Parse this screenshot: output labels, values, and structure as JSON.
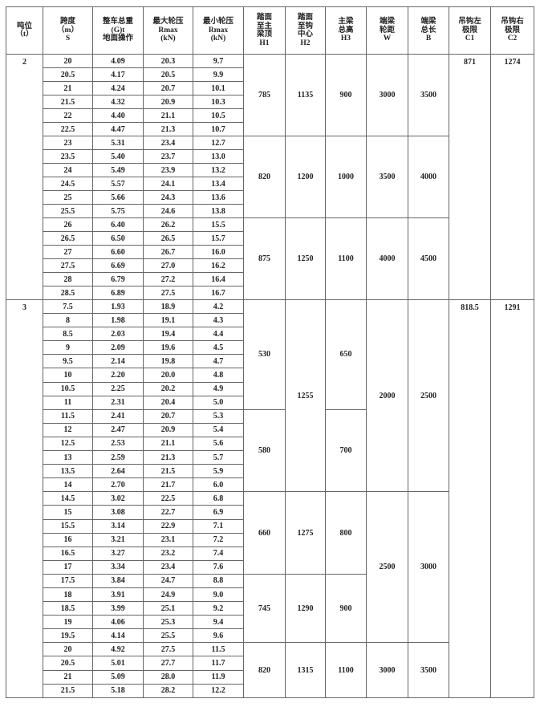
{
  "headers": [
    {
      "key": "tonnage",
      "lines": [
        "吨位",
        "（t）"
      ]
    },
    {
      "key": "span",
      "lines": [
        "跨度",
        "（m）",
        "S"
      ]
    },
    {
      "key": "weight",
      "lines": [
        "整车总重",
        "(G)t",
        "地面操作"
      ]
    },
    {
      "key": "rmax",
      "lines": [
        "最大轮压",
        "Rmax",
        "(kN)"
      ]
    },
    {
      "key": "rmin",
      "lines": [
        "最小轮压",
        "Rmax",
        "(kN)"
      ]
    },
    {
      "key": "h1",
      "lines": [
        "踏面",
        "至主",
        "梁顶",
        "H1"
      ]
    },
    {
      "key": "h2",
      "lines": [
        "踏面",
        "至钩",
        "中心",
        "H2"
      ]
    },
    {
      "key": "h3",
      "lines": [
        "主梁",
        "总高",
        "H3"
      ]
    },
    {
      "key": "w",
      "lines": [
        "端梁",
        "轮距",
        "W"
      ]
    },
    {
      "key": "b",
      "lines": [
        "端梁",
        "总长",
        "B"
      ]
    },
    {
      "key": "c1",
      "lines": [
        "吊钩左",
        "极限",
        "C1"
      ]
    },
    {
      "key": "c2",
      "lines": [
        "吊钩右",
        "极限",
        "C2"
      ]
    }
  ],
  "sections": [
    {
      "tonnage": "2",
      "c1": "871",
      "c2": "1274",
      "rows": [
        [
          "20",
          "4.09",
          "20.3",
          "9.7"
        ],
        [
          "20.5",
          "4.17",
          "20.5",
          "9.9"
        ],
        [
          "21",
          "4.24",
          "20.7",
          "10.1"
        ],
        [
          "21.5",
          "4.32",
          "20.9",
          "10.3"
        ],
        [
          "22",
          "4.40",
          "21.1",
          "10.5"
        ],
        [
          "22.5",
          "4.47",
          "21.3",
          "10.7"
        ],
        [
          "23",
          "5.31",
          "23.4",
          "12.7"
        ],
        [
          "23.5",
          "5.40",
          "23.7",
          "13.0"
        ],
        [
          "24",
          "5.49",
          "23.9",
          "13.2"
        ],
        [
          "24.5",
          "5.57",
          "24.1",
          "13.4"
        ],
        [
          "25",
          "5.66",
          "24.3",
          "13.6"
        ],
        [
          "25.5",
          "5.75",
          "24.6",
          "13.8"
        ],
        [
          "26",
          "6.40",
          "26.2",
          "15.5"
        ],
        [
          "26.5",
          "6.50",
          "26.5",
          "15.7"
        ],
        [
          "27",
          "6.60",
          "26.7",
          "16.0"
        ],
        [
          "27.5",
          "6.69",
          "27.0",
          "16.2"
        ],
        [
          "28",
          "6.79",
          "27.2",
          "16.4"
        ],
        [
          "28.5",
          "6.89",
          "27.5",
          "16.7"
        ]
      ],
      "groups": {
        "h1": [
          {
            "value": "785",
            "rows": 6
          },
          {
            "value": "820",
            "rows": 6
          },
          {
            "value": "875",
            "rows": 6
          }
        ],
        "h2": [
          {
            "value": "1135",
            "rows": 6
          },
          {
            "value": "1200",
            "rows": 6
          },
          {
            "value": "1250",
            "rows": 6
          }
        ],
        "h3": [
          {
            "value": "900",
            "rows": 6
          },
          {
            "value": "1000",
            "rows": 6
          },
          {
            "value": "1100",
            "rows": 6
          }
        ],
        "w": [
          {
            "value": "3000",
            "rows": 6
          },
          {
            "value": "3500",
            "rows": 6
          },
          {
            "value": "4000",
            "rows": 6
          }
        ],
        "b": [
          {
            "value": "3500",
            "rows": 6
          },
          {
            "value": "4000",
            "rows": 6
          },
          {
            "value": "4500",
            "rows": 6
          }
        ]
      }
    },
    {
      "tonnage": "3",
      "c1": "818.5",
      "c2": "1291",
      "rows": [
        [
          "7.5",
          "1.93",
          "18.9",
          "4.2"
        ],
        [
          "8",
          "1.98",
          "19.1",
          "4.3"
        ],
        [
          "8.5",
          "2.03",
          "19.4",
          "4.4"
        ],
        [
          "9",
          "2.09",
          "19.6",
          "4.5"
        ],
        [
          "9.5",
          "2.14",
          "19.8",
          "4.7"
        ],
        [
          "10",
          "2.20",
          "20.0",
          "4.8"
        ],
        [
          "10.5",
          "2.25",
          "20.2",
          "4.9"
        ],
        [
          "11",
          "2.31",
          "20.4",
          "5.0"
        ],
        [
          "11.5",
          "2.41",
          "20.7",
          "5.3"
        ],
        [
          "12",
          "2.47",
          "20.9",
          "5.4"
        ],
        [
          "12.5",
          "2.53",
          "21.1",
          "5.6"
        ],
        [
          "13",
          "2.59",
          "21.3",
          "5.7"
        ],
        [
          "13.5",
          "2.64",
          "21.5",
          "5.9"
        ],
        [
          "14",
          "2.70",
          "21.7",
          "6.0"
        ],
        [
          "14.5",
          "3.02",
          "22.5",
          "6.8"
        ],
        [
          "15",
          "3.08",
          "22.7",
          "6.9"
        ],
        [
          "15.5",
          "3.14",
          "22.9",
          "7.1"
        ],
        [
          "16",
          "3.21",
          "23.1",
          "7.2"
        ],
        [
          "16.5",
          "3.27",
          "23.2",
          "7.4"
        ],
        [
          "17",
          "3.34",
          "23.4",
          "7.6"
        ],
        [
          "17.5",
          "3.84",
          "24.7",
          "8.8"
        ],
        [
          "18",
          "3.91",
          "24.9",
          "9.0"
        ],
        [
          "18.5",
          "3.99",
          "25.1",
          "9.2"
        ],
        [
          "19",
          "4.06",
          "25.3",
          "9.4"
        ],
        [
          "19.5",
          "4.14",
          "25.5",
          "9.6"
        ],
        [
          "20",
          "4.92",
          "27.5",
          "11.5"
        ],
        [
          "20.5",
          "5.01",
          "27.7",
          "11.7"
        ],
        [
          "21",
          "5.09",
          "28.0",
          "11.9"
        ],
        [
          "21.5",
          "5.18",
          "28.2",
          "12.2"
        ]
      ],
      "groups": {
        "h1": [
          {
            "value": "530",
            "rows": 8
          },
          {
            "value": "580",
            "rows": 6
          },
          {
            "value": "660",
            "rows": 6
          },
          {
            "value": "745",
            "rows": 5
          },
          {
            "value": "820",
            "rows": 4
          }
        ],
        "h2": [
          {
            "value": "1255",
            "rows": 14
          },
          {
            "value": "1275",
            "rows": 6
          },
          {
            "value": "1290",
            "rows": 5
          },
          {
            "value": "1315",
            "rows": 4
          }
        ],
        "h3": [
          {
            "value": "650",
            "rows": 8
          },
          {
            "value": "700",
            "rows": 6
          },
          {
            "value": "800",
            "rows": 6
          },
          {
            "value": "900",
            "rows": 5
          },
          {
            "value": "1100",
            "rows": 4
          }
        ],
        "w": [
          {
            "value": "2000",
            "rows": 14
          },
          {
            "value": "2500",
            "rows": 11
          },
          {
            "value": "3000",
            "rows": 4
          }
        ],
        "b": [
          {
            "value": "2500",
            "rows": 14
          },
          {
            "value": "3000",
            "rows": 11
          },
          {
            "value": "3500",
            "rows": 4
          }
        ]
      }
    }
  ]
}
